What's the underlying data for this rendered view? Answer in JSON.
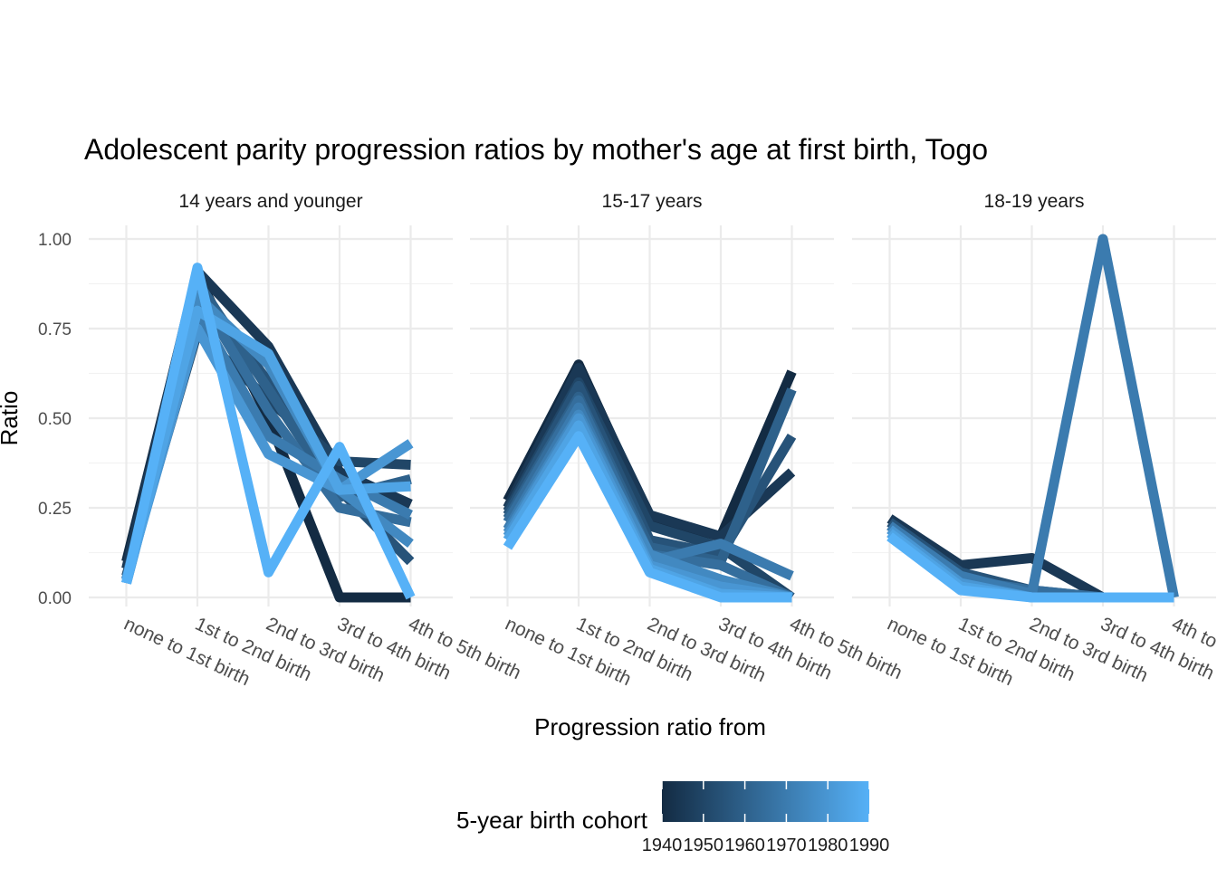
{
  "chart_data": {
    "type": "line",
    "title": "Adolescent parity progression ratios by mother's age at first birth,  Togo",
    "xlabel": "Progression ratio from",
    "ylabel": "Ratio",
    "ylim": [
      0,
      1
    ],
    "yticks": [
      "0.00",
      "0.25",
      "0.50",
      "0.75",
      "1.00"
    ],
    "categories": [
      "none to 1st birth",
      "1st to 2nd birth",
      "2nd to 3rd birth",
      "3rd to 4th birth",
      "4th to 5th birth"
    ],
    "color_scale": {
      "title": "5-year birth cohort",
      "ticks": [
        "1940",
        "1950",
        "1960",
        "1970",
        "1980",
        "1990"
      ],
      "low": 1940,
      "high": 1990,
      "low_color": "#132B43",
      "high_color": "#56B1F7"
    },
    "legend_position": "bottom",
    "grid": true,
    "facets": [
      {
        "label": "14 years and younger",
        "series": [
          {
            "cohort": 1940,
            "values": [
              0.1,
              0.9,
              0.5,
              0.0,
              0.0
            ]
          },
          {
            "cohort": 1945,
            "values": [
              0.08,
              0.91,
              0.7,
              0.35,
              0.26
            ]
          },
          {
            "cohort": 1950,
            "values": [
              0.06,
              0.74,
              0.55,
              0.38,
              0.37
            ]
          },
          {
            "cohort": 1955,
            "values": [
              0.05,
              0.87,
              0.6,
              0.3,
              0.1
            ]
          },
          {
            "cohort": 1960,
            "values": [
              0.05,
              0.88,
              0.58,
              0.28,
              0.33
            ]
          },
          {
            "cohort": 1965,
            "values": [
              0.05,
              0.85,
              0.52,
              0.25,
              0.21
            ]
          },
          {
            "cohort": 1970,
            "values": [
              0.04,
              0.8,
              0.45,
              0.33,
              0.23
            ]
          },
          {
            "cohort": 1975,
            "values": [
              0.04,
              0.84,
              0.65,
              0.3,
              0.15
            ]
          },
          {
            "cohort": 1980,
            "values": [
              0.05,
              0.75,
              0.4,
              0.3,
              0.43
            ]
          },
          {
            "cohort": 1985,
            "values": [
              0.04,
              0.8,
              0.68,
              0.3,
              0.31
            ]
          },
          {
            "cohort": 1990,
            "values": [
              0.04,
              0.92,
              0.07,
              0.42,
              0.0
            ]
          }
        ]
      },
      {
        "label": "15-17 years",
        "series": [
          {
            "cohort": 1940,
            "values": [
              0.27,
              0.65,
              0.22,
              0.17,
              0.63
            ]
          },
          {
            "cohort": 1945,
            "values": [
              0.25,
              0.64,
              0.23,
              0.17,
              0.35
            ]
          },
          {
            "cohort": 1950,
            "values": [
              0.24,
              0.6,
              0.2,
              0.14,
              0.0
            ]
          },
          {
            "cohort": 1955,
            "values": [
              0.23,
              0.59,
              0.16,
              0.12,
              0.45
            ]
          },
          {
            "cohort": 1960,
            "values": [
              0.22,
              0.56,
              0.14,
              0.1,
              0.58
            ]
          },
          {
            "cohort": 1965,
            "values": [
              0.21,
              0.55,
              0.12,
              0.09,
              0.0
            ]
          },
          {
            "cohort": 1970,
            "values": [
              0.19,
              0.53,
              0.1,
              0.15,
              0.06
            ]
          },
          {
            "cohort": 1975,
            "values": [
              0.18,
              0.51,
              0.12,
              0.05,
              0.0
            ]
          },
          {
            "cohort": 1980,
            "values": [
              0.17,
              0.5,
              0.09,
              0.03,
              0.0
            ]
          },
          {
            "cohort": 1985,
            "values": [
              0.16,
              0.48,
              0.08,
              0.01,
              0.0
            ]
          },
          {
            "cohort": 1990,
            "values": [
              0.14,
              0.45,
              0.07,
              0.0,
              0.0
            ]
          }
        ]
      },
      {
        "label": "18-19 years",
        "series": [
          {
            "cohort": 1945,
            "values": [
              0.22,
              0.09,
              0.11,
              0.0,
              0.0
            ]
          },
          {
            "cohort": 1955,
            "values": [
              0.21,
              0.07,
              0.02,
              0.0,
              0.0
            ]
          },
          {
            "cohort": 1965,
            "values": [
              0.2,
              0.05,
              0.02,
              0.0,
              0.0
            ]
          },
          {
            "cohort": 1970,
            "values": [
              0.2,
              0.06,
              0.01,
              1.0,
              0.0
            ]
          },
          {
            "cohort": 1980,
            "values": [
              0.19,
              0.04,
              0.0,
              0.0,
              0.0
            ]
          },
          {
            "cohort": 1985,
            "values": [
              0.18,
              0.03,
              0.0,
              0.0,
              0.0
            ]
          },
          {
            "cohort": 1990,
            "values": [
              0.17,
              0.02,
              0.0,
              0.0,
              0.0
            ]
          }
        ]
      }
    ]
  }
}
